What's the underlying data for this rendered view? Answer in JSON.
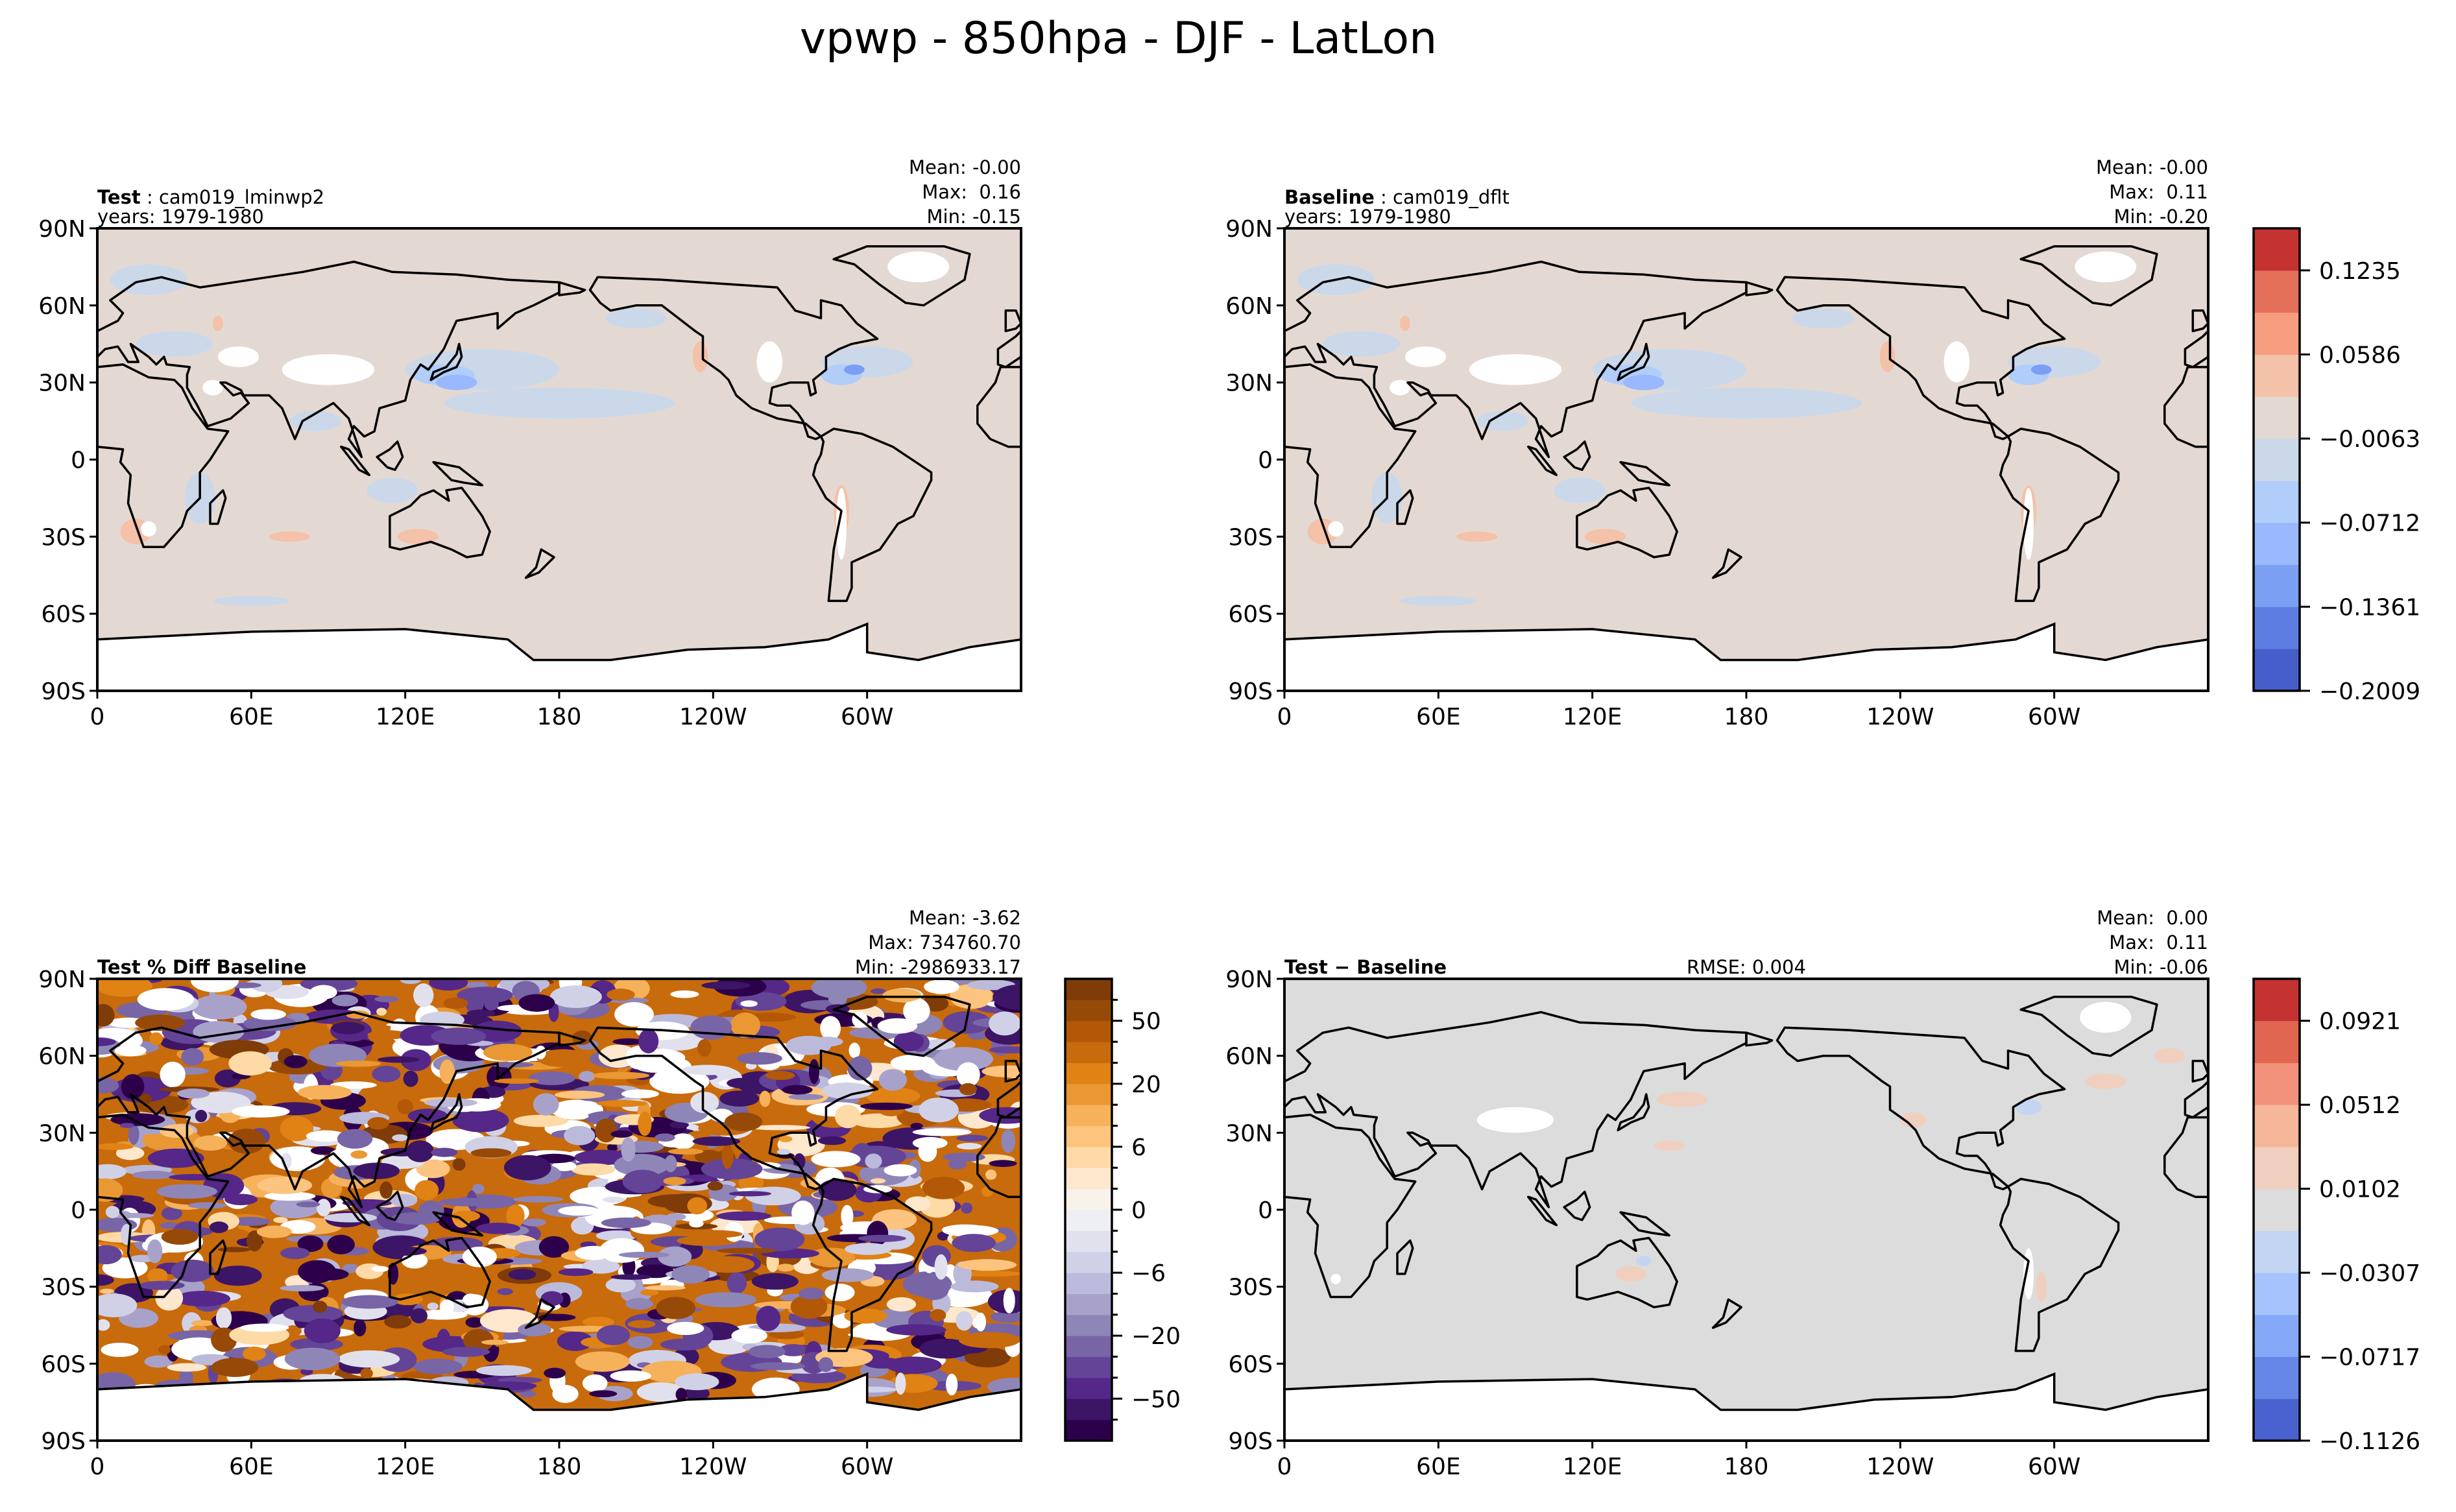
{
  "figure": {
    "title": "vpwp - 850hpa - DJF - LatLon"
  },
  "chart_data": [
    {
      "type": "heatmap",
      "panel": "top-left",
      "label_bold": "Test",
      "label_rest": " : cam019_lminwp2",
      "years": "years: 1979-1980",
      "stats": {
        "mean": "Mean: -0.00",
        "max": "Max:  0.16",
        "min": "Min: -0.15"
      },
      "xlim": [
        0,
        360
      ],
      "ylim": [
        -90,
        90
      ],
      "xticklabels": [
        "0",
        "60E",
        "120E",
        "180",
        "120W",
        "60W"
      ],
      "yticklabels": [
        "90N",
        "60N",
        "30N",
        "0",
        "30S",
        "60S",
        "90S"
      ],
      "background_color": "#e4d9d2",
      "colorbar": null
    },
    {
      "type": "heatmap",
      "panel": "top-right",
      "label_bold": "Baseline",
      "label_rest": " : cam019_dflt",
      "years": "years: 1979-1980",
      "stats": {
        "mean": "Mean: -0.00",
        "max": "Max:  0.11",
        "min": "Min: -0.20"
      },
      "xlim": [
        0,
        360
      ],
      "ylim": [
        -90,
        90
      ],
      "xticklabels": [
        "0",
        "60E",
        "120E",
        "180",
        "120W",
        "60W"
      ],
      "yticklabels": [
        "90N",
        "60N",
        "30N",
        "0",
        "30S",
        "60S",
        "90S"
      ],
      "background_color": "#e4d9d2",
      "colorbar": {
        "shared_by": "top row",
        "ticklabels": [
          "−0.2009",
          "−0.1361",
          "−0.0712",
          "−0.0063",
          "0.0586",
          "0.1235"
        ],
        "tick_values": [
          -0.2009,
          -0.1361,
          -0.0712,
          -0.0063,
          0.0586,
          0.1235
        ],
        "colors_bottom_to_top": [
          "#465ec9",
          "#5d7de3",
          "#7b9ff2",
          "#99b8fe",
          "#b1cdf9",
          "#cbd8ea",
          "#e4d9d2",
          "#f4c1a9",
          "#f59d7e",
          "#e5705a",
          "#c43232"
        ]
      }
    },
    {
      "type": "heatmap",
      "panel": "bottom-left",
      "label_bold": "Test % Diff Baseline",
      "stats": {
        "mean": "Mean: -3.62",
        "max": "Max: 734760.70",
        "min": "Min: -2986933.17"
      },
      "xlim": [
        0,
        360
      ],
      "ylim": [
        -90,
        90
      ],
      "xticklabels": [
        "0",
        "60E",
        "120E",
        "180",
        "120W",
        "60W"
      ],
      "yticklabels": [
        "90N",
        "60N",
        "30N",
        "0",
        "30S",
        "60S",
        "90S"
      ],
      "colorbar": {
        "ticklabels": [
          "−50",
          "−20",
          "−6",
          "0",
          "6",
          "20",
          "50"
        ],
        "tick_values": [
          -50,
          -20,
          -6,
          0,
          6,
          20,
          50
        ],
        "colors_bottom_to_top": [
          "#2d004b",
          "#3d1566",
          "#542788",
          "#644497",
          "#7865a6",
          "#8f86b8",
          "#a8a2cb",
          "#bcbadb",
          "#d0d1e6",
          "#e1e1ee",
          "#eeeff2",
          "#f7f2ea",
          "#fde8cd",
          "#fedaa6",
          "#fdc47f",
          "#f6b15b",
          "#ea9834",
          "#e08214",
          "#c86b0c",
          "#b35806",
          "#974a07",
          "#7f3b08"
        ]
      }
    },
    {
      "type": "heatmap",
      "panel": "bottom-right",
      "label_bold": "Test − Baseline",
      "rmse": "RMSE: 0.004",
      "stats": {
        "mean": "Mean:  0.00",
        "max": "Max:  0.11",
        "min": "Min: -0.06"
      },
      "xlim": [
        0,
        360
      ],
      "ylim": [
        -90,
        90
      ],
      "xticklabels": [
        "0",
        "60E",
        "120E",
        "180",
        "120W",
        "60W"
      ],
      "yticklabels": [
        "90N",
        "60N",
        "30N",
        "0",
        "30S",
        "60S",
        "90S"
      ],
      "background_color": "#dcdcdc",
      "colorbar": {
        "ticklabels": [
          "−0.1126",
          "−0.0717",
          "−0.0307",
          "0.0102",
          "0.0512",
          "0.0921"
        ],
        "tick_values": [
          -0.1126,
          -0.0717,
          -0.0307,
          0.0102,
          0.0512,
          0.0921
        ],
        "colors_bottom_to_top": [
          "#4a62cf",
          "#6687e8",
          "#86a8f8",
          "#a6c3fd",
          "#c3d5f3",
          "#dcdcdc",
          "#f0cfbe",
          "#f6b69a",
          "#f2927a",
          "#e0664f",
          "#c43232"
        ]
      }
    }
  ]
}
